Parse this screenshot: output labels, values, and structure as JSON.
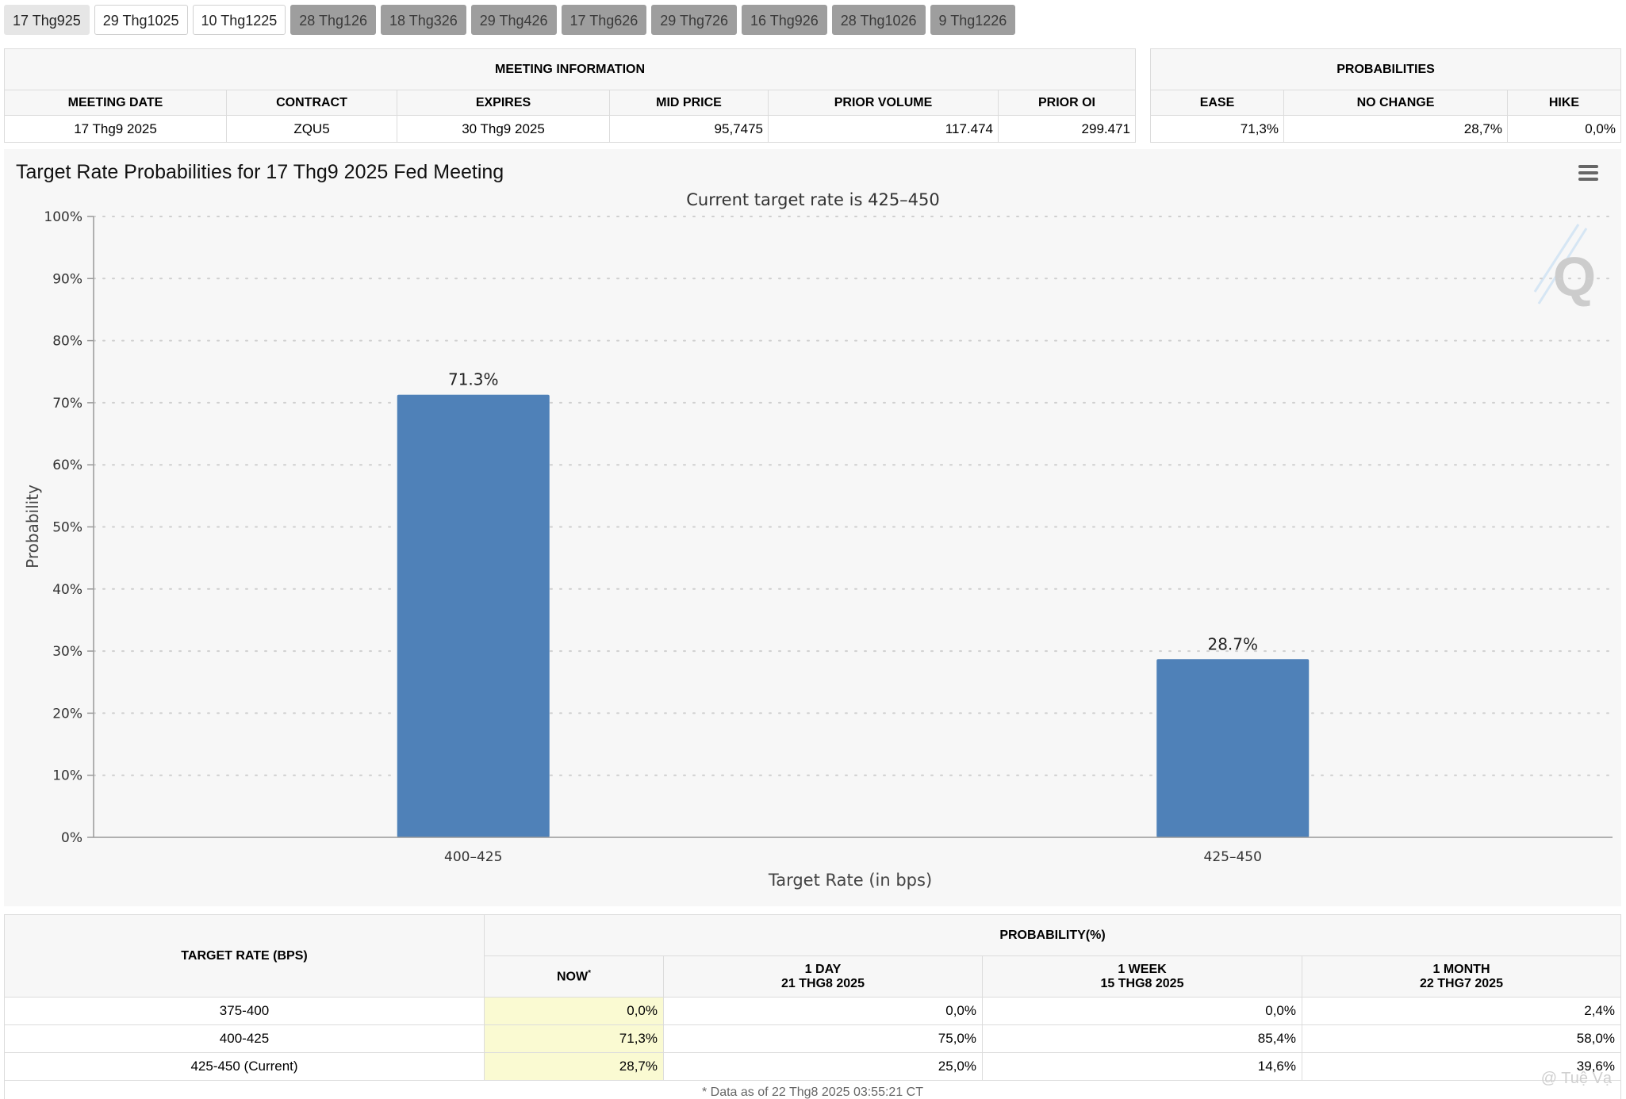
{
  "tabs": [
    {
      "label": "17 Thg925",
      "state": "active"
    },
    {
      "label": "29 Thg1025",
      "state": "normal"
    },
    {
      "label": "10 Thg1225",
      "state": "normal"
    },
    {
      "label": "28 Thg126",
      "state": "disabled"
    },
    {
      "label": "18 Thg326",
      "state": "disabled"
    },
    {
      "label": "29 Thg426",
      "state": "disabled"
    },
    {
      "label": "17 Thg626",
      "state": "disabled"
    },
    {
      "label": "29 Thg726",
      "state": "disabled"
    },
    {
      "label": "16 Thg926",
      "state": "disabled"
    },
    {
      "label": "28 Thg1026",
      "state": "disabled"
    },
    {
      "label": "9 Thg1226",
      "state": "disabled"
    }
  ],
  "meeting_info": {
    "caption": "MEETING INFORMATION",
    "headers": [
      "MEETING DATE",
      "CONTRACT",
      "EXPIRES",
      "MID PRICE",
      "PRIOR VOLUME",
      "PRIOR OI"
    ],
    "row": [
      "17 Thg9 2025",
      "ZQU5",
      "30 Thg9 2025",
      "95,7475",
      "117.474",
      "299.471"
    ]
  },
  "probabilities": {
    "caption": "PROBABILITIES",
    "headers": [
      "EASE",
      "NO CHANGE",
      "HIKE"
    ],
    "row": [
      "71,3%",
      "28,7%",
      "0,0%"
    ]
  },
  "chart": {
    "menu_icon": "hamburger-menu-icon",
    "logo_icon": "q-logo-icon",
    "logo_text": "Q",
    "bar_color": "#4f81b8"
  },
  "chart_data": {
    "type": "bar",
    "title": "Target Rate Probabilities for 17 Thg9 2025 Fed Meeting",
    "subtitle": "Current target rate is 425–450",
    "xlabel": "Target Rate (in bps)",
    "ylabel": "Probability",
    "categories": [
      "400–425",
      "425–450"
    ],
    "values": [
      71.3,
      28.7
    ],
    "data_labels": [
      "71.3%",
      "28.7%"
    ],
    "ylim": [
      0,
      100
    ],
    "yticks": [
      "0%",
      "10%",
      "20%",
      "30%",
      "40%",
      "50%",
      "60%",
      "70%",
      "80%",
      "90%",
      "100%"
    ],
    "grid": true,
    "legend": "none"
  },
  "prob_table": {
    "header_left": "TARGET RATE (BPS)",
    "header_group": "PROBABILITY(%)",
    "now_label": "NOW",
    "now_mark": "*",
    "col_1day": [
      "1 DAY",
      "21 THG8 2025"
    ],
    "col_1week": [
      "1 WEEK",
      "15 THG8 2025"
    ],
    "col_1month": [
      "1 MONTH",
      "22 THG7 2025"
    ],
    "rows": [
      [
        "375-400",
        "0,0%",
        "0,0%",
        "0,0%",
        "2,4%"
      ],
      [
        "400-425",
        "71,3%",
        "75,0%",
        "85,4%",
        "58,0%"
      ],
      [
        "425-450 (Current)",
        "28,7%",
        "25,0%",
        "14,6%",
        "39,6%"
      ]
    ],
    "footnote": "* Data as of 22 Thg8 2025 03:55:21 CT"
  },
  "watermark": "@ Tuệ Vạ"
}
